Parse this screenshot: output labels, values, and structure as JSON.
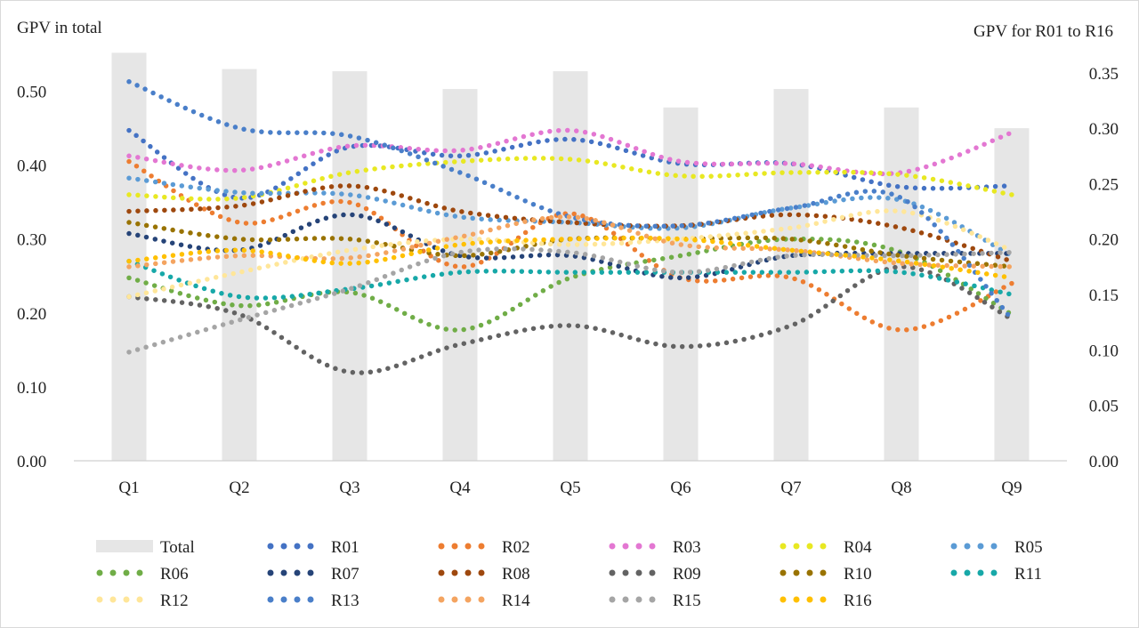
{
  "chart_data": {
    "type": "bar+line",
    "categories": [
      "Q1",
      "Q2",
      "Q3",
      "Q4",
      "Q5",
      "Q6",
      "Q7",
      "Q8",
      "Q9"
    ],
    "left_axis": {
      "title": "GPV in total",
      "ylim": [
        0,
        0.55
      ],
      "ticks": [
        0.0,
        0.1,
        0.2,
        0.3,
        0.4,
        0.5
      ],
      "tick_labels": [
        "0.00",
        "0.10",
        "0.20",
        "0.30",
        "0.40",
        "0.50"
      ]
    },
    "right_axis": {
      "title": "GPV for R01 to R16",
      "ylim": [
        0,
        0.3667
      ],
      "ticks": [
        0.0,
        0.05,
        0.1,
        0.15,
        0.2,
        0.25,
        0.3,
        0.35
      ],
      "tick_labels": [
        "0.00",
        "0.05",
        "0.10",
        "0.15",
        "0.20",
        "0.25",
        "0.30",
        "0.35"
      ]
    },
    "bar_series": {
      "name": "Total",
      "color": "#e6e6e6",
      "values": [
        0.552,
        0.53,
        0.527,
        0.503,
        0.527,
        0.478,
        0.503,
        0.478,
        0.45
      ]
    },
    "series": [
      {
        "name": "R01",
        "color": "#4472c4",
        "values": [
          0.298,
          0.237,
          0.283,
          0.275,
          0.29,
          0.268,
          0.268,
          0.247,
          0.248
        ]
      },
      {
        "name": "R02",
        "color": "#ed7d31",
        "values": [
          0.27,
          0.215,
          0.233,
          0.175,
          0.223,
          0.165,
          0.165,
          0.118,
          0.16
        ]
      },
      {
        "name": "R03",
        "color": "#e377d2",
        "values": [
          0.275,
          0.262,
          0.284,
          0.28,
          0.298,
          0.27,
          0.268,
          0.26,
          0.296
        ]
      },
      {
        "name": "R04",
        "color": "#e8e822",
        "values": [
          0.24,
          0.237,
          0.26,
          0.27,
          0.272,
          0.257,
          0.26,
          0.258,
          0.24
        ]
      },
      {
        "name": "R05",
        "color": "#5b9bd5",
        "values": [
          0.255,
          0.242,
          0.24,
          0.22,
          0.215,
          0.21,
          0.228,
          0.235,
          0.185
        ]
      },
      {
        "name": "R06",
        "color": "#70ad47",
        "values": [
          0.165,
          0.14,
          0.152,
          0.118,
          0.165,
          0.185,
          0.2,
          0.188,
          0.132
        ]
      },
      {
        "name": "R07",
        "color": "#264478",
        "values": [
          0.205,
          0.19,
          0.222,
          0.185,
          0.185,
          0.165,
          0.185,
          0.187,
          0.187
        ]
      },
      {
        "name": "R08",
        "color": "#9e480e",
        "values": [
          0.225,
          0.23,
          0.248,
          0.225,
          0.215,
          0.212,
          0.222,
          0.21,
          0.18
        ]
      },
      {
        "name": "R09",
        "color": "#636363",
        "values": [
          0.148,
          0.132,
          0.08,
          0.105,
          0.122,
          0.103,
          0.122,
          0.175,
          0.128
        ]
      },
      {
        "name": "R10",
        "color": "#997300",
        "values": [
          0.215,
          0.2,
          0.2,
          0.185,
          0.2,
          0.2,
          0.2,
          0.185,
          0.175
        ]
      },
      {
        "name": "R11",
        "color": "#17a8a8",
        "values": [
          0.18,
          0.148,
          0.155,
          0.17,
          0.17,
          0.17,
          0.17,
          0.17,
          0.15
        ]
      },
      {
        "name": "R12",
        "color": "#ffe699",
        "values": [
          0.148,
          0.17,
          0.19,
          0.2,
          0.195,
          0.2,
          0.21,
          0.225,
          0.19
        ]
      },
      {
        "name": "R13",
        "color": "#4a7fc9",
        "values": [
          0.342,
          0.3,
          0.293,
          0.26,
          0.22,
          0.212,
          0.228,
          0.237,
          0.128
        ]
      },
      {
        "name": "R14",
        "color": "#f4a460",
        "values": [
          0.175,
          0.185,
          0.183,
          0.202,
          0.22,
          0.195,
          0.19,
          0.178,
          0.175
        ]
      },
      {
        "name": "R15",
        "color": "#a5a5a5",
        "values": [
          0.098,
          0.127,
          0.155,
          0.188,
          0.188,
          0.17,
          0.185,
          0.185,
          0.188
        ]
      },
      {
        "name": "R16",
        "color": "#ffc000",
        "values": [
          0.18,
          0.19,
          0.178,
          0.195,
          0.2,
          0.2,
          0.19,
          0.18,
          0.165
        ]
      }
    ],
    "legend_position": "bottom",
    "grid": false
  }
}
